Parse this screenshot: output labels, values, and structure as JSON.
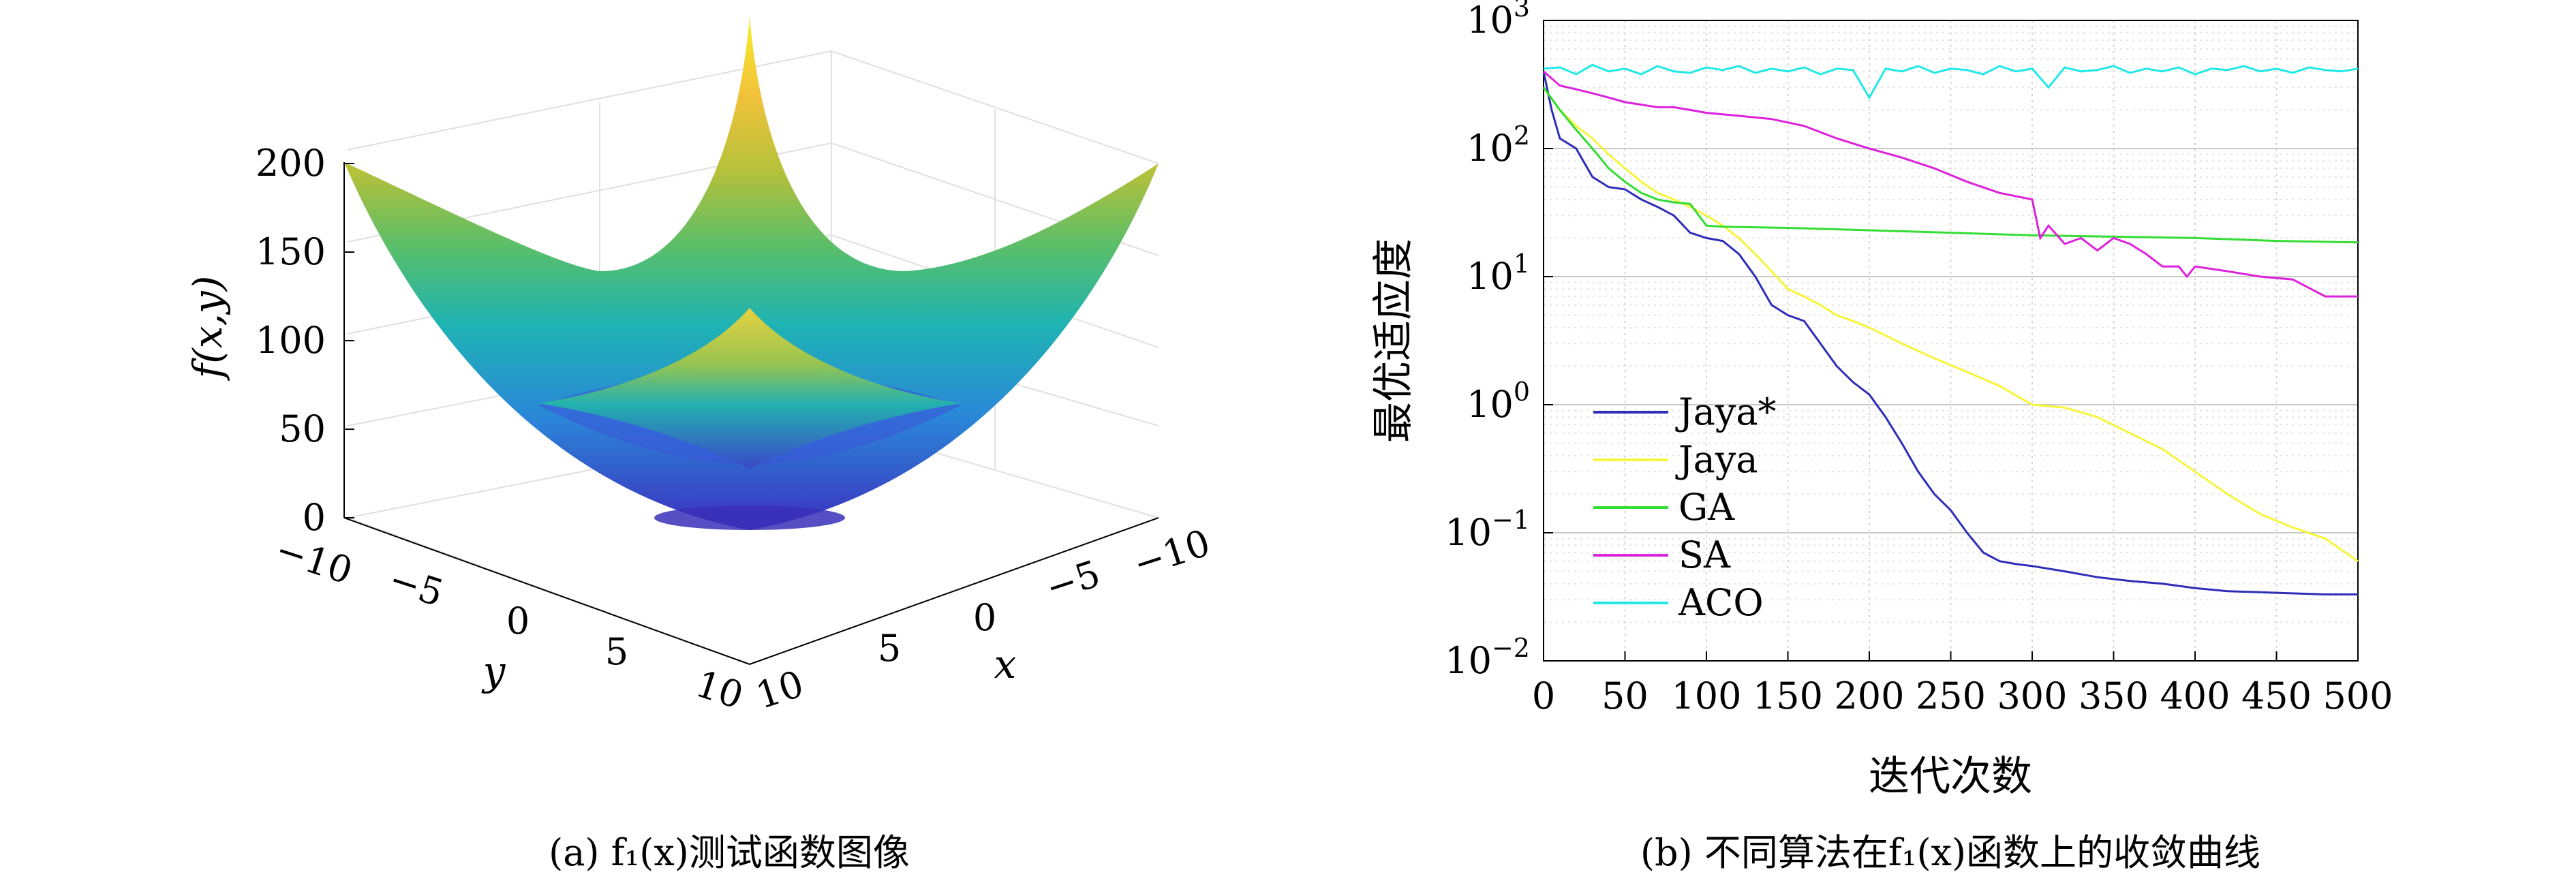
{
  "chart_data": [
    {
      "type": "surface3d",
      "caption": "(a) f₁(x)测试函数图像",
      "zlabel": "f(x,y)",
      "xlabel": "x",
      "ylabel": "y",
      "zticks": [
        "0",
        "50",
        "100",
        "150",
        "200"
      ],
      "xticks": [
        "10",
        "5",
        "0",
        "−5",
        "−10"
      ],
      "yticks": [
        "−10",
        "−5",
        "0",
        "5",
        "10"
      ],
      "xlim": [
        -10,
        10
      ],
      "ylim": [
        -10,
        10
      ],
      "zlim": [
        0,
        200
      ],
      "function": "f(x,y) = x^2 + y^2",
      "grid": true
    },
    {
      "type": "line",
      "caption": "(b) 不同算法在f₁(x)函数上的收敛曲线",
      "xlabel": "迭代次数",
      "ylabel": "最优适应度",
      "xlim": [
        0,
        500
      ],
      "ylim": [
        0.01,
        1000
      ],
      "yscale": "log",
      "grid": true,
      "legend_position": "bottom-left",
      "xticks": [
        "0",
        "50",
        "100",
        "150",
        "200",
        "250",
        "300",
        "350",
        "400",
        "450",
        "500"
      ],
      "yticks": [
        {
          "base": "10",
          "exp": "−2"
        },
        {
          "base": "10",
          "exp": "−1"
        },
        {
          "base": "10",
          "exp": "0"
        },
        {
          "base": "10",
          "exp": "1"
        },
        {
          "base": "10",
          "exp": "2"
        },
        {
          "base": "10",
          "exp": "3"
        }
      ],
      "series": [
        {
          "name": "Jaya*",
          "color": "#2d2db8",
          "x": [
            0,
            5,
            10,
            20,
            30,
            40,
            50,
            60,
            70,
            80,
            90,
            100,
            110,
            120,
            130,
            140,
            150,
            160,
            170,
            180,
            190,
            200,
            210,
            220,
            230,
            240,
            250,
            260,
            270,
            280,
            290,
            300,
            320,
            340,
            360,
            380,
            400,
            420,
            450,
            480,
            500
          ],
          "y": [
            400,
            200,
            120,
            100,
            60,
            50,
            48,
            40,
            35,
            30,
            22,
            20,
            19,
            15,
            10,
            6,
            5,
            4.5,
            3,
            2,
            1.5,
            1.2,
            0.8,
            0.5,
            0.3,
            0.2,
            0.15,
            0.1,
            0.07,
            0.06,
            0.057,
            0.055,
            0.05,
            0.045,
            0.042,
            0.04,
            0.037,
            0.035,
            0.034,
            0.033,
            0.033
          ]
        },
        {
          "name": "Jaya",
          "color": "#f5f53a",
          "x": [
            0,
            10,
            20,
            30,
            40,
            50,
            60,
            70,
            80,
            90,
            100,
            110,
            120,
            130,
            140,
            150,
            160,
            170,
            180,
            190,
            200,
            220,
            240,
            260,
            280,
            300,
            320,
            340,
            360,
            380,
            400,
            420,
            440,
            460,
            480,
            500
          ],
          "y": [
            300,
            200,
            150,
            120,
            90,
            70,
            55,
            45,
            40,
            35,
            30,
            25,
            20,
            15,
            11,
            8,
            7,
            6,
            5,
            4.5,
            4,
            3,
            2.3,
            1.8,
            1.4,
            1,
            0.95,
            0.8,
            0.6,
            0.45,
            0.3,
            0.2,
            0.14,
            0.11,
            0.09,
            0.06
          ]
        },
        {
          "name": "GA",
          "color": "#33dd33",
          "x": [
            0,
            10,
            20,
            30,
            40,
            50,
            60,
            70,
            80,
            90,
            100,
            110,
            150,
            200,
            250,
            300,
            350,
            400,
            450,
            500
          ],
          "y": [
            300,
            200,
            140,
            100,
            70,
            55,
            45,
            40,
            38,
            37,
            25,
            24.5,
            24,
            23,
            22,
            21,
            20.5,
            20,
            19,
            18.5
          ]
        },
        {
          "name": "SA",
          "color": "#dd22dd",
          "x": [
            0,
            10,
            20,
            30,
            40,
            50,
            60,
            70,
            80,
            90,
            100,
            120,
            140,
            160,
            180,
            200,
            220,
            240,
            260,
            280,
            300,
            305,
            310,
            320,
            330,
            340,
            350,
            360,
            370,
            380,
            390,
            395,
            400,
            420,
            440,
            460,
            480,
            500
          ],
          "y": [
            400,
            310,
            290,
            270,
            250,
            230,
            220,
            210,
            210,
            200,
            190,
            180,
            170,
            150,
            120,
            100,
            85,
            70,
            55,
            45,
            40,
            20,
            25,
            18,
            20,
            16,
            20,
            18,
            15,
            12,
            12,
            10,
            12,
            11,
            10,
            9.5,
            7,
            7
          ]
        },
        {
          "name": "ACO",
          "color": "#22e8e8",
          "x": [
            0,
            10,
            20,
            30,
            40,
            50,
            60,
            70,
            80,
            90,
            100,
            110,
            120,
            130,
            140,
            150,
            160,
            170,
            180,
            190,
            200,
            210,
            220,
            230,
            240,
            250,
            260,
            270,
            280,
            290,
            300,
            310,
            320,
            330,
            340,
            350,
            360,
            370,
            380,
            390,
            400,
            410,
            420,
            430,
            440,
            450,
            460,
            470,
            480,
            490,
            500
          ],
          "y": [
            420,
            430,
            380,
            450,
            400,
            420,
            380,
            440,
            400,
            390,
            430,
            410,
            440,
            390,
            420,
            400,
            430,
            380,
            420,
            410,
            250,
            420,
            400,
            440,
            390,
            420,
            410,
            380,
            440,
            400,
            420,
            300,
            430,
            400,
            410,
            440,
            390,
            420,
            400,
            430,
            380,
            420,
            410,
            440,
            400,
            420,
            390,
            430,
            410,
            400,
            420
          ]
        }
      ]
    }
  ]
}
